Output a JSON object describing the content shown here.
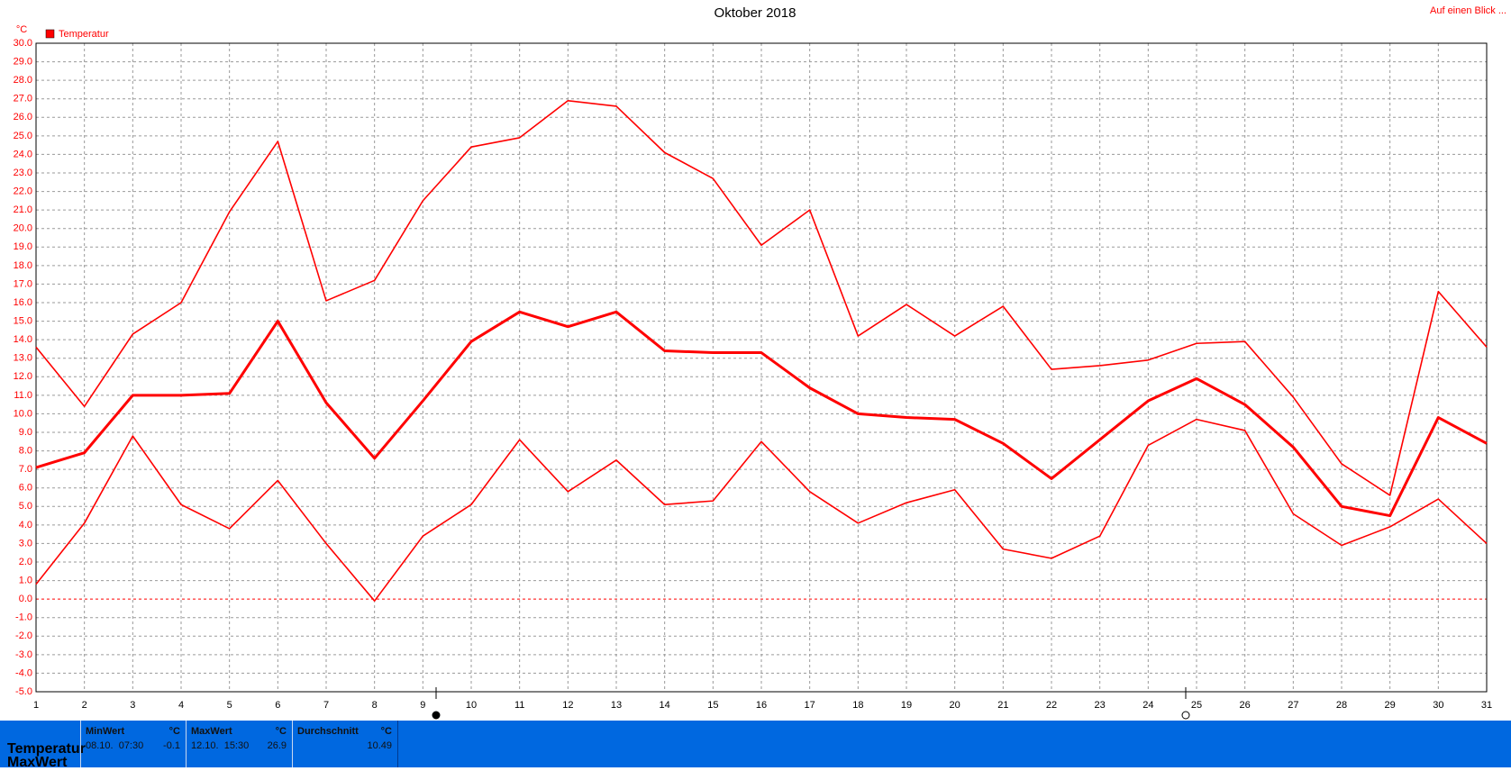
{
  "chart_data": {
    "type": "line",
    "title": "Oktober 2018",
    "y_unit": "°C",
    "link": "Auf einen Blick ...",
    "x": [
      1,
      2,
      3,
      4,
      5,
      6,
      7,
      8,
      9,
      10,
      11,
      12,
      13,
      14,
      15,
      16,
      17,
      18,
      19,
      20,
      21,
      22,
      23,
      24,
      25,
      26,
      27,
      28,
      29,
      30,
      31
    ],
    "xlim": [
      1,
      31
    ],
    "xticks": [
      1,
      2,
      3,
      4,
      5,
      6,
      7,
      8,
      9,
      10,
      11,
      12,
      13,
      14,
      15,
      16,
      17,
      18,
      19,
      20,
      21,
      22,
      23,
      24,
      25,
      26,
      27,
      28,
      29,
      30,
      31
    ],
    "ylim": [
      -5,
      30
    ],
    "yticks": [
      {
        "value": -5,
        "label": "-5.0"
      },
      {
        "value": -4,
        "label": "-4.0"
      },
      {
        "value": -3,
        "label": "-3.0"
      },
      {
        "value": -2,
        "label": "-2.0"
      },
      {
        "value": -1,
        "label": "-1.0"
      },
      {
        "value": 0,
        "label": "0.0"
      },
      {
        "value": 1,
        "label": "1.0"
      },
      {
        "value": 2,
        "label": "2.0"
      },
      {
        "value": 3,
        "label": "3.0"
      },
      {
        "value": 4,
        "label": "4.0"
      },
      {
        "value": 5,
        "label": "5.0"
      },
      {
        "value": 6,
        "label": "6.0"
      },
      {
        "value": 7,
        "label": "7.0"
      },
      {
        "value": 8,
        "label": "8.0"
      },
      {
        "value": 9,
        "label": "9.0"
      },
      {
        "value": 10,
        "label": "10.0"
      },
      {
        "value": 11,
        "label": "11.0"
      },
      {
        "value": 12,
        "label": "12.0"
      },
      {
        "value": 13,
        "label": "13.0"
      },
      {
        "value": 14,
        "label": "14.0"
      },
      {
        "value": 15,
        "label": "15.0"
      },
      {
        "value": 16,
        "label": "16.0"
      },
      {
        "value": 17,
        "label": "17.0"
      },
      {
        "value": 18,
        "label": "18.0"
      },
      {
        "value": 19,
        "label": "19.0"
      },
      {
        "value": 20,
        "label": "20.0"
      },
      {
        "value": 21,
        "label": "21.0"
      },
      {
        "value": 22,
        "label": "22.0"
      },
      {
        "value": 23,
        "label": "23.0"
      },
      {
        "value": 24,
        "label": "24.0"
      },
      {
        "value": 25,
        "label": "25.0"
      },
      {
        "value": 26,
        "label": "26.0"
      },
      {
        "value": 27,
        "label": "27.0"
      },
      {
        "value": 28,
        "label": "28.0"
      },
      {
        "value": 29,
        "label": "29.0"
      },
      {
        "value": 30,
        "label": "30.0"
      }
    ],
    "grid": true,
    "series": [
      {
        "name": "Temperatur",
        "color": "#ff0000",
        "values": [
          7.1,
          7.9,
          11.0,
          11.0,
          11.1,
          15.0,
          10.6,
          7.6,
          10.7,
          13.9,
          15.5,
          14.7,
          15.5,
          13.4,
          13.3,
          13.3,
          11.4,
          10.0,
          9.8,
          9.7,
          8.4,
          6.5,
          8.6,
          10.7,
          11.9,
          10.5,
          8.2,
          5.0,
          4.5,
          9.8,
          8.4
        ]
      },
      {
        "color": "#ff0000",
        "values": [
          13.6,
          10.4,
          14.3,
          16.0,
          20.9,
          24.7,
          16.1,
          17.2,
          21.5,
          24.4,
          24.9,
          26.9,
          26.6,
          24.1,
          22.7,
          19.1,
          21.0,
          14.2,
          15.9,
          14.2,
          15.8,
          12.4,
          12.6,
          12.9,
          13.8,
          13.9,
          10.9,
          7.3,
          5.6,
          16.6,
          13.6
        ]
      },
      {
        "color": "#ff0000",
        "values": [
          0.8,
          4.1,
          8.8,
          5.1,
          3.8,
          6.4,
          3.0,
          -0.1,
          3.4,
          5.1,
          8.6,
          5.8,
          7.5,
          5.1,
          5.3,
          8.5,
          5.8,
          4.1,
          5.2,
          5.9,
          2.7,
          2.2,
          3.4,
          8.3,
          9.7,
          9.1,
          4.6,
          2.9,
          3.9,
          5.4,
          3.0
        ]
      }
    ]
  },
  "summary": {
    "row_labels": [
      "Temperatur",
      "MaxWert"
    ],
    "columns": [
      {
        "header": "MinWert",
        "unit": "°C",
        "time": "08.10.  07:30",
        "value": -0.1
      },
      {
        "header": "MaxWert",
        "unit": "°C",
        "time": "12.10.  15:30",
        "value": 26.9
      },
      {
        "header": "Durchschnitt",
        "unit": "°C",
        "value": 10.49
      }
    ]
  }
}
